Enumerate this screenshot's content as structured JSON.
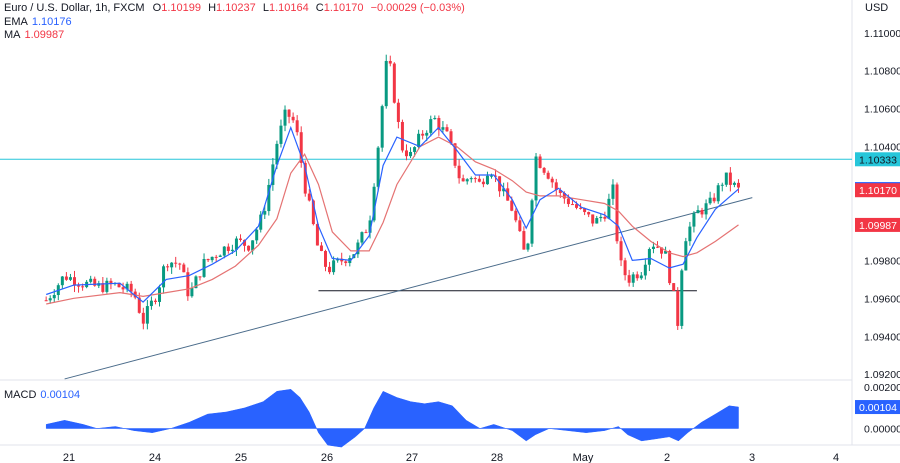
{
  "header": {
    "symbol": "Euro / U.S. Dollar, 1h, FXCM",
    "open_label": "O",
    "open": "1.10199",
    "high_label": "H",
    "high": "1.10237",
    "low_label": "L",
    "low": "1.10164",
    "close_label": "C",
    "close": "1.10170",
    "change": "−0.00029 (−0.03%)",
    "ema_label": "EMA",
    "ema_value": "1.10176",
    "ma_label": "MA",
    "ma_value": "1.09987",
    "currency": "USD",
    "macd_label": "MACD",
    "macd_value": "0.00104"
  },
  "colors": {
    "up": "#089981",
    "down": "#f23645",
    "ema": "#2962ff",
    "ma": "#e57373",
    "hline": "#26c6da",
    "trendline": "#4a6b8a",
    "support": "#131722",
    "macd": "#2962ff"
  },
  "chart_data": [
    {
      "type": "candlestick",
      "title": "Euro / U.S. Dollar, 1h, FXCM",
      "x_ticks": [
        "21",
        "24",
        "25",
        "26",
        "27",
        "28",
        "May",
        "2",
        "3",
        "4"
      ],
      "y_ticks": [
        "1.11000",
        "1.10800",
        "1.10600",
        "1.10400",
        "1.09800",
        "1.09600",
        "1.09400",
        "1.09200"
      ],
      "ylim": [
        1.0918,
        1.1112
      ],
      "price_labels": [
        {
          "value": 1.10333,
          "label": "1.10333",
          "color": "#26c6da",
          "text_color": "#131722"
        },
        {
          "value": 1.10176,
          "label": "1.10176",
          "color": "#2962ff",
          "text_color": "#ffffff"
        },
        {
          "value": 1.1017,
          "label": "1.10170",
          "color": "#f23645",
          "text_color": "#ffffff"
        },
        {
          "value": 1.09987,
          "label": "1.09987",
          "color": "#f23645",
          "text_color": "#ffffff"
        }
      ],
      "horizontal_lines": [
        {
          "value": 1.10333
        }
      ],
      "support_line": {
        "value": 1.0964,
        "x_start": 25.8,
        "x_end": 34.0
      },
      "trendline": {
        "x1": 20.3,
        "y1": 1.09175,
        "x2": 35.2,
        "y2": 1.10131
      },
      "ohlc_anchors": [
        {
          "x": 19.9,
          "close": 1.0959
        },
        {
          "x": 20.3,
          "close": 1.0972
        },
        {
          "x": 20.7,
          "close": 1.0968
        },
        {
          "x": 21.0,
          "close": 1.0966
        },
        {
          "x": 21.4,
          "close": 1.0967
        },
        {
          "x": 21.8,
          "close": 1.0963
        },
        {
          "x": 22.0,
          "close": 1.0948
        },
        {
          "x": 22.3,
          "close": 1.0963
        },
        {
          "x": 22.5,
          "close": 1.098
        },
        {
          "x": 22.8,
          "close": 1.0978
        },
        {
          "x": 23.0,
          "close": 1.0961
        },
        {
          "x": 23.3,
          "close": 1.0978
        },
        {
          "x": 23.6,
          "close": 1.0984
        },
        {
          "x": 24.0,
          "close": 1.099
        },
        {
          "x": 24.3,
          "close": 1.0988
        },
        {
          "x": 24.6,
          "close": 1.1004
        },
        {
          "x": 24.9,
          "close": 1.1042
        },
        {
          "x": 25.1,
          "close": 1.1058
        },
        {
          "x": 25.3,
          "close": 1.1052
        },
        {
          "x": 25.5,
          "close": 1.102
        },
        {
          "x": 25.8,
          "close": 1.0985
        },
        {
          "x": 26.0,
          "close": 1.0975
        },
        {
          "x": 26.3,
          "close": 1.098
        },
        {
          "x": 26.6,
          "close": 1.0985
        },
        {
          "x": 26.9,
          "close": 1.1
        },
        {
          "x": 27.1,
          "close": 1.1042
        },
        {
          "x": 27.3,
          "close": 1.109
        },
        {
          "x": 27.6,
          "close": 1.104
        },
        {
          "x": 27.8,
          "close": 1.1035
        },
        {
          "x": 28.0,
          "close": 1.1045
        },
        {
          "x": 28.3,
          "close": 1.1055
        },
        {
          "x": 28.6,
          "close": 1.1045
        },
        {
          "x": 28.9,
          "close": 1.102
        },
        {
          "x": 29.1,
          "close": 1.1025
        },
        {
          "x": 29.3,
          "close": 1.102
        },
        {
          "x": 29.5,
          "close": 1.103
        },
        {
          "x": 29.8,
          "close": 1.1015
        },
        {
          "x": 30.0,
          "close": 1.1007
        },
        {
          "x": 30.3,
          "close": 1.098
        },
        {
          "x": 30.5,
          "close": 1.1035
        },
        {
          "x": 30.8,
          "close": 1.1025
        },
        {
          "x": 31.0,
          "close": 1.1015
        },
        {
          "x": 31.3,
          "close": 1.101
        },
        {
          "x": 31.5,
          "close": 1.1005
        },
        {
          "x": 31.8,
          "close": 1.1
        },
        {
          "x": 32.0,
          "close": 1.1005
        },
        {
          "x": 32.2,
          "close": 1.1018
        },
        {
          "x": 32.3,
          "close": 1.098
        },
        {
          "x": 32.5,
          "close": 1.097
        },
        {
          "x": 32.8,
          "close": 1.0975
        },
        {
          "x": 33.0,
          "close": 1.099
        },
        {
          "x": 33.3,
          "close": 1.0985
        },
        {
          "x": 33.5,
          "close": 1.096
        },
        {
          "x": 33.6,
          "close": 1.0945
        },
        {
          "x": 33.7,
          "close": 1.099
        },
        {
          "x": 34.0,
          "close": 1.1005
        },
        {
          "x": 34.3,
          "close": 1.101
        },
        {
          "x": 34.6,
          "close": 1.1024
        },
        {
          "x": 34.9,
          "close": 1.1017
        }
      ],
      "ema_anchors": [
        {
          "x": 19.9,
          "y": 1.0962
        },
        {
          "x": 20.5,
          "y": 1.0967
        },
        {
          "x": 21.5,
          "y": 1.0968
        },
        {
          "x": 22.0,
          "y": 1.0958
        },
        {
          "x": 22.5,
          "y": 1.097
        },
        {
          "x": 23.0,
          "y": 1.0972
        },
        {
          "x": 23.5,
          "y": 1.0978
        },
        {
          "x": 24.0,
          "y": 1.0985
        },
        {
          "x": 24.5,
          "y": 1.0998
        },
        {
          "x": 24.9,
          "y": 1.103
        },
        {
          "x": 25.2,
          "y": 1.105
        },
        {
          "x": 25.5,
          "y": 1.103
        },
        {
          "x": 25.8,
          "y": 1.0998
        },
        {
          "x": 26.1,
          "y": 1.0981
        },
        {
          "x": 26.5,
          "y": 1.098
        },
        {
          "x": 26.9,
          "y": 1.0993
        },
        {
          "x": 27.2,
          "y": 1.103
        },
        {
          "x": 27.5,
          "y": 1.1045
        },
        {
          "x": 28.0,
          "y": 1.104
        },
        {
          "x": 28.4,
          "y": 1.105
        },
        {
          "x": 28.8,
          "y": 1.1038
        },
        {
          "x": 29.2,
          "y": 1.1025
        },
        {
          "x": 29.6,
          "y": 1.1025
        },
        {
          "x": 30.0,
          "y": 1.1012
        },
        {
          "x": 30.3,
          "y": 1.0997
        },
        {
          "x": 30.6,
          "y": 1.1012
        },
        {
          "x": 31.0,
          "y": 1.1018
        },
        {
          "x": 31.5,
          "y": 1.1008
        },
        {
          "x": 32.0,
          "y": 1.1004
        },
        {
          "x": 32.3,
          "y": 1.0998
        },
        {
          "x": 32.6,
          "y": 1.098
        },
        {
          "x": 33.0,
          "y": 1.0981
        },
        {
          "x": 33.4,
          "y": 1.0976
        },
        {
          "x": 33.7,
          "y": 1.0978
        },
        {
          "x": 34.0,
          "y": 1.0992
        },
        {
          "x": 34.4,
          "y": 1.1007
        },
        {
          "x": 34.9,
          "y": 1.10176
        }
      ],
      "ma_anchors": [
        {
          "x": 19.9,
          "y": 1.0957
        },
        {
          "x": 20.5,
          "y": 1.096
        },
        {
          "x": 21.5,
          "y": 1.0963
        },
        {
          "x": 22.0,
          "y": 1.0961
        },
        {
          "x": 22.5,
          "y": 1.0963
        },
        {
          "x": 23.0,
          "y": 1.0965
        },
        {
          "x": 23.5,
          "y": 1.097
        },
        {
          "x": 24.0,
          "y": 1.0977
        },
        {
          "x": 24.5,
          "y": 1.0988
        },
        {
          "x": 24.9,
          "y": 1.1002
        },
        {
          "x": 25.2,
          "y": 1.1026
        },
        {
          "x": 25.5,
          "y": 1.1036
        },
        {
          "x": 25.8,
          "y": 1.102
        },
        {
          "x": 26.1,
          "y": 1.0995
        },
        {
          "x": 26.5,
          "y": 1.0985
        },
        {
          "x": 26.9,
          "y": 1.0985
        },
        {
          "x": 27.2,
          "y": 1.1
        },
        {
          "x": 27.5,
          "y": 1.102
        },
        {
          "x": 28.0,
          "y": 1.104
        },
        {
          "x": 28.4,
          "y": 1.1045
        },
        {
          "x": 28.8,
          "y": 1.104
        },
        {
          "x": 29.2,
          "y": 1.1032
        },
        {
          "x": 29.6,
          "y": 1.1028
        },
        {
          "x": 30.0,
          "y": 1.1022
        },
        {
          "x": 30.3,
          "y": 1.1016
        },
        {
          "x": 30.6,
          "y": 1.1014
        },
        {
          "x": 31.0,
          "y": 1.1014
        },
        {
          "x": 31.5,
          "y": 1.1012
        },
        {
          "x": 32.0,
          "y": 1.101
        },
        {
          "x": 32.3,
          "y": 1.1006
        },
        {
          "x": 32.6,
          "y": 1.0998
        },
        {
          "x": 33.0,
          "y": 1.099
        },
        {
          "x": 33.4,
          "y": 1.0984
        },
        {
          "x": 33.7,
          "y": 1.0982
        },
        {
          "x": 34.0,
          "y": 1.0984
        },
        {
          "x": 34.4,
          "y": 1.099
        },
        {
          "x": 34.9,
          "y": 1.09987
        }
      ]
    },
    {
      "type": "area",
      "title": "MACD",
      "y_ticks": [
        "0.00200",
        "0.00000"
      ],
      "ylim": [
        -0.0007,
        0.0023
      ],
      "price_label": {
        "value": 0.00104,
        "label": "0.00104"
      },
      "anchors": [
        {
          "x": 19.9,
          "y": 0.0002
        },
        {
          "x": 20.3,
          "y": 0.0004
        },
        {
          "x": 20.7,
          "y": 0.0002
        },
        {
          "x": 21.0,
          "y": 0.0
        },
        {
          "x": 21.4,
          "y": 0.0001
        },
        {
          "x": 21.8,
          "y": -0.0001
        },
        {
          "x": 22.2,
          "y": -0.0002
        },
        {
          "x": 22.6,
          "y": 0.0
        },
        {
          "x": 23.0,
          "y": 0.0003
        },
        {
          "x": 23.4,
          "y": 0.0007
        },
        {
          "x": 23.8,
          "y": 0.0008
        },
        {
          "x": 24.2,
          "y": 0.001
        },
        {
          "x": 24.6,
          "y": 0.0013
        },
        {
          "x": 24.9,
          "y": 0.0018
        },
        {
          "x": 25.2,
          "y": 0.0019
        },
        {
          "x": 25.4,
          "y": 0.0015
        },
        {
          "x": 25.6,
          "y": 0.0008
        },
        {
          "x": 25.8,
          "y": -0.0002
        },
        {
          "x": 26.0,
          "y": -0.0008
        },
        {
          "x": 26.3,
          "y": -0.0009
        },
        {
          "x": 26.6,
          "y": -0.0004
        },
        {
          "x": 26.8,
          "y": 0.0
        },
        {
          "x": 27.0,
          "y": 0.001
        },
        {
          "x": 27.2,
          "y": 0.0018
        },
        {
          "x": 27.5,
          "y": 0.0015
        },
        {
          "x": 27.8,
          "y": 0.0013
        },
        {
          "x": 28.1,
          "y": 0.0012
        },
        {
          "x": 28.4,
          "y": 0.0013
        },
        {
          "x": 28.7,
          "y": 0.0011
        },
        {
          "x": 29.0,
          "y": 0.0004
        },
        {
          "x": 29.3,
          "y": 0.0
        },
        {
          "x": 29.6,
          "y": 0.0002
        },
        {
          "x": 30.0,
          "y": -0.0001
        },
        {
          "x": 30.3,
          "y": -0.0006
        },
        {
          "x": 30.5,
          "y": -0.0003
        },
        {
          "x": 30.8,
          "y": 0.0
        },
        {
          "x": 31.2,
          "y": -0.0001
        },
        {
          "x": 31.6,
          "y": -0.0002
        },
        {
          "x": 32.0,
          "y": -0.0001
        },
        {
          "x": 32.3,
          "y": 0.0001
        },
        {
          "x": 32.5,
          "y": -0.0003
        },
        {
          "x": 32.8,
          "y": -0.0006
        },
        {
          "x": 33.1,
          "y": -0.0005
        },
        {
          "x": 33.4,
          "y": -0.0004
        },
        {
          "x": 33.6,
          "y": -0.0006
        },
        {
          "x": 33.8,
          "y": -0.0002
        },
        {
          "x": 34.1,
          "y": 0.0003
        },
        {
          "x": 34.4,
          "y": 0.0007
        },
        {
          "x": 34.7,
          "y": 0.0011
        },
        {
          "x": 34.9,
          "y": 0.00104
        }
      ]
    }
  ]
}
